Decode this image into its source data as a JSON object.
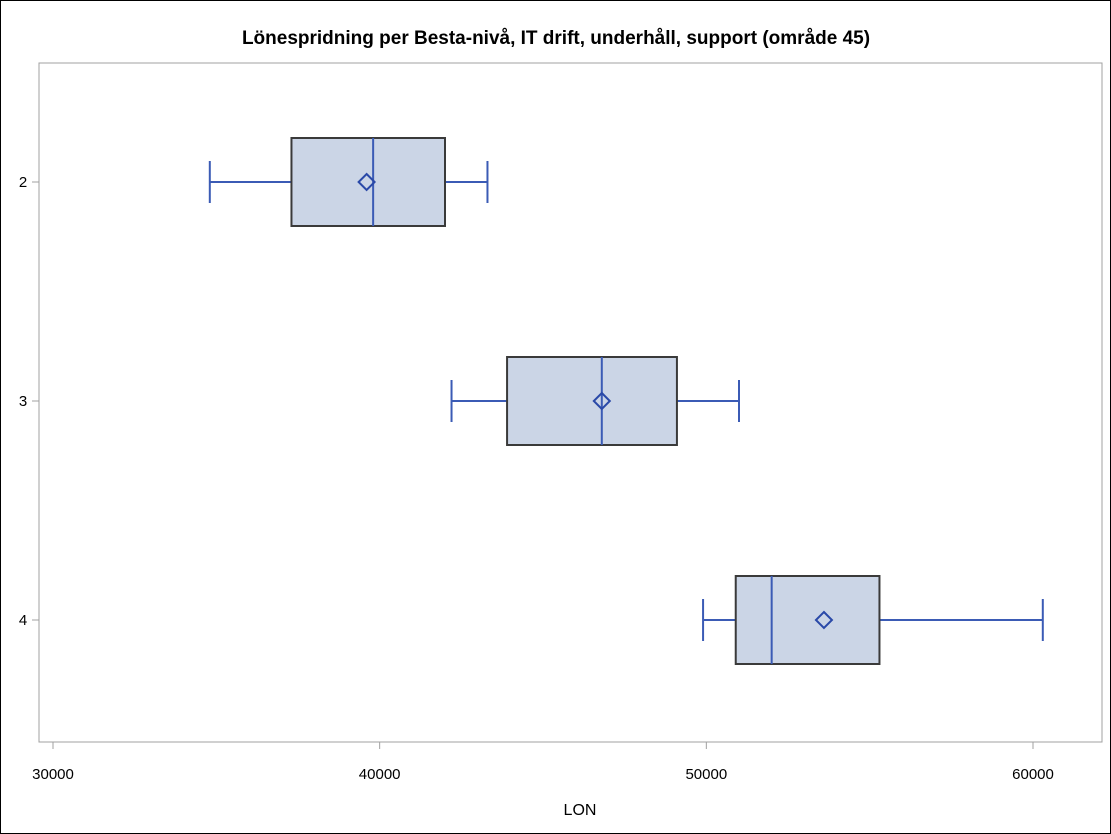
{
  "chart_data": {
    "type": "boxplot",
    "orientation": "horizontal",
    "title": "Lönespridning per Besta-nivå, IT drift, underhåll, support (område 45)",
    "xlabel": "LON",
    "ylabel": "",
    "xlim": [
      30000,
      62300
    ],
    "xticks": [
      30000,
      40000,
      50000,
      60000
    ],
    "categories": [
      "2",
      "3",
      "4"
    ],
    "boxes": [
      {
        "category": "2",
        "whisker_low": 34800,
        "q1": 37300,
        "median": 39800,
        "mean": 39600,
        "q3": 42000,
        "whisker_high": 43300
      },
      {
        "category": "3",
        "whisker_low": 42200,
        "q1": 43900,
        "median": 46800,
        "mean": 46800,
        "q3": 49100,
        "whisker_high": 51000
      },
      {
        "category": "4",
        "whisker_low": 49900,
        "q1": 50900,
        "median": 52000,
        "mean": 53600,
        "q3": 55300,
        "whisker_high": 60300
      }
    ],
    "grid": false,
    "legend": "none",
    "colors": {
      "box_fill": "#cbd5e6",
      "box_stroke": "#3a3a3a",
      "whisker": "#3b5bb5",
      "median": "#3b5bb5",
      "mean_marker": "#2a49a8",
      "axis": "#a0a0a0",
      "frame": "#000000"
    },
    "mean_marker": "diamond-icon"
  }
}
